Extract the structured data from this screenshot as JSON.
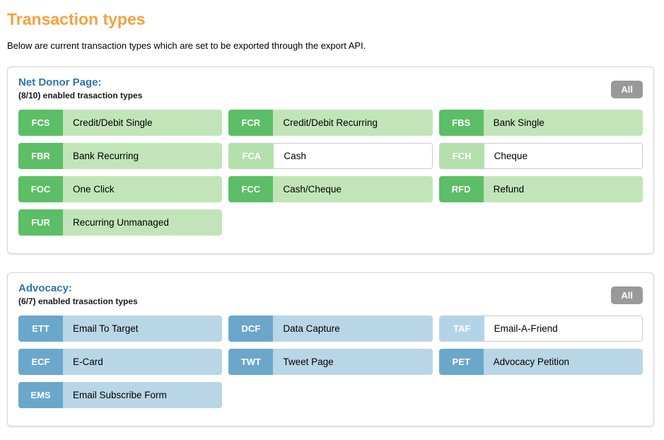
{
  "page": {
    "title": "Transaction types",
    "description": "Below are current transaction types which are set to be exported through the export API."
  },
  "colors": {
    "accent_orange": "#f8a13c",
    "heading_blue": "#2e75ad",
    "green_code": "#5cbe66",
    "green_body": "#c1e5b8",
    "green_code_disabled": "#b4e0ac",
    "blue_code": "#6ba7cb",
    "blue_body": "#b9d6e7",
    "blue_code_disabled": "#b3d4e8",
    "all_button_gray": "#999999",
    "panel_border": "#d4d4d4",
    "pill_border": "#cccccc"
  },
  "sections": [
    {
      "title": "Net Donor Page:",
      "subtitle": "(8/10) enabled trasaction types",
      "all_button_label": "All",
      "theme": "green",
      "items": [
        {
          "code": "FCS",
          "label": "Credit/Debit Single",
          "enabled": true
        },
        {
          "code": "FCR",
          "label": "Credit/Debit Recurring",
          "enabled": true
        },
        {
          "code": "FBS",
          "label": "Bank Single",
          "enabled": true
        },
        {
          "code": "FBR",
          "label": "Bank Recurring",
          "enabled": true
        },
        {
          "code": "FCA",
          "label": "Cash",
          "enabled": false
        },
        {
          "code": "FCH",
          "label": "Cheque",
          "enabled": false
        },
        {
          "code": "FOC",
          "label": "One Click",
          "enabled": true
        },
        {
          "code": "FCC",
          "label": "Cash/Cheque",
          "enabled": true
        },
        {
          "code": "RFD",
          "label": "Refund",
          "enabled": true
        },
        {
          "code": "FUR",
          "label": "Recurring Unmanaged",
          "enabled": true
        }
      ]
    },
    {
      "title": "Advocacy:",
      "subtitle": "(6/7) enabled trasaction types",
      "all_button_label": "All",
      "theme": "blue",
      "items": [
        {
          "code": "ETT",
          "label": "Email To Target",
          "enabled": true
        },
        {
          "code": "DCF",
          "label": "Data Capture",
          "enabled": true
        },
        {
          "code": "TAF",
          "label": "Email-A-Friend",
          "enabled": false
        },
        {
          "code": "ECF",
          "label": "E-Card",
          "enabled": true
        },
        {
          "code": "TWT",
          "label": "Tweet Page",
          "enabled": true
        },
        {
          "code": "PET",
          "label": "Advocacy Petition",
          "enabled": true
        },
        {
          "code": "EMS",
          "label": "Email Subscribe Form",
          "enabled": true
        }
      ]
    }
  ]
}
